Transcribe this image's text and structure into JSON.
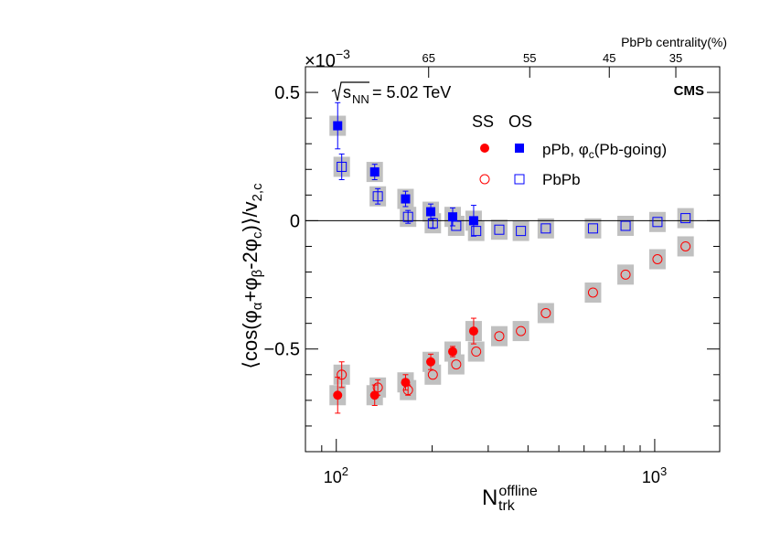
{
  "chart_data": {
    "type": "scatter",
    "title": "",
    "experiment_label": "CMS",
    "energy_label": {
      "sqrt": "s",
      "sub": "NN",
      "value": "= 5.02 TeV"
    },
    "exponent_label": {
      "base": "×10",
      "exp": "−3"
    },
    "ylabel": "⟨cos(φα+φβ−2φc)⟩/v2,c",
    "ylabel_parts": {
      "open": "⟨cos(φ",
      "a": "α",
      "plus": "+φ",
      "b": "β",
      "minus": "-2φ",
      "c": "c",
      "close": ")⟩/v",
      "v2c": "2,c"
    },
    "xlabel_parts": {
      "base": "N",
      "sup": "offline",
      "sub": "trk"
    },
    "xlabel": "N_trk^offline",
    "xscale": "log",
    "xlim": [
      80,
      1600
    ],
    "ylim": [
      -0.0009,
      0.0006
    ],
    "y_ticks": [
      0.0005,
      0,
      -0.0005
    ],
    "y_tick_labels": [
      "0.5",
      "0",
      "−0.5"
    ],
    "x_ticks": [
      100,
      1000
    ],
    "x_tick_labels": [
      {
        "base": "10",
        "exp": "2"
      },
      {
        "base": "10",
        "exp": "3"
      }
    ],
    "top_axis": {
      "label": "PbPb centrality(%)",
      "ticks": [
        {
          "label": "65",
          "at_ntrk": 195
        },
        {
          "label": "55",
          "at_ntrk": 405
        },
        {
          "label": "45",
          "at_ntrk": 720
        },
        {
          "label": "35",
          "at_ntrk": 1165
        }
      ]
    },
    "legend": {
      "position": "top-right",
      "header_ss": "SS",
      "header_os": "OS",
      "entries": [
        {
          "label_prefix": "pPb, ",
          "label_phi": "φ",
          "label_sub": "c",
          "label_suffix": "(Pb-going)",
          "style": "filled"
        },
        {
          "label_prefix": "PbPb",
          "label_phi": "",
          "label_sub": "",
          "label_suffix": "",
          "style": "open"
        }
      ]
    },
    "colors": {
      "ss": "#ff0000",
      "os": "#0000ff",
      "sys_box": "#c0c0c0",
      "axis": "#000000"
    },
    "series": [
      {
        "name": "pPb OS",
        "marker": "filled-square",
        "color": "#0000ff",
        "points": [
          {
            "x": 101,
            "y": 0.00037,
            "err": 9e-05
          },
          {
            "x": 132,
            "y": 0.00019,
            "err": 3e-05
          },
          {
            "x": 165,
            "y": 8.5e-05,
            "err": 3e-05
          },
          {
            "x": 198,
            "y": 3.5e-05,
            "err": 3e-05
          },
          {
            "x": 232,
            "y": 1.5e-05,
            "err": 3.5e-05
          },
          {
            "x": 270,
            "y": 0.0,
            "err": 6e-05
          }
        ]
      },
      {
        "name": "PbPb OS",
        "marker": "open-square",
        "color": "#0000ff",
        "points": [
          {
            "x": 104,
            "y": 0.00021,
            "err": 5e-05
          },
          {
            "x": 135,
            "y": 9.5e-05,
            "err": 3e-05
          },
          {
            "x": 168,
            "y": 1.5e-05,
            "err": 2.5e-05
          },
          {
            "x": 201,
            "y": -1e-05,
            "err": 2e-05
          },
          {
            "x": 238,
            "y": -2e-05,
            "err": 1e-05
          },
          {
            "x": 275,
            "y": -4e-05,
            "err": 1e-05
          },
          {
            "x": 325,
            "y": -3.5e-05,
            "err": 5e-06
          },
          {
            "x": 380,
            "y": -4e-05,
            "err": 5e-06
          },
          {
            "x": 455,
            "y": -3e-05,
            "err": 5e-06
          },
          {
            "x": 640,
            "y": -3e-05,
            "err": 5e-06
          },
          {
            "x": 810,
            "y": -2e-05,
            "err": 5e-06
          },
          {
            "x": 1020,
            "y": -5e-06,
            "err": 5e-06
          },
          {
            "x": 1250,
            "y": 1e-05,
            "err": 5e-06
          }
        ]
      },
      {
        "name": "pPb SS",
        "marker": "filled-circle",
        "color": "#ff0000",
        "points": [
          {
            "x": 101,
            "y": -0.00068,
            "err": 7e-05
          },
          {
            "x": 132,
            "y": -0.00068,
            "err": 4e-05
          },
          {
            "x": 165,
            "y": -0.00063,
            "err": 3e-05
          },
          {
            "x": 198,
            "y": -0.00055,
            "err": 3e-05
          },
          {
            "x": 232,
            "y": -0.00051,
            "err": 2e-05
          },
          {
            "x": 270,
            "y": -0.00043,
            "err": 5e-05
          }
        ]
      },
      {
        "name": "PbPb SS",
        "marker": "open-circle",
        "color": "#ff0000",
        "points": [
          {
            "x": 104,
            "y": -0.0006,
            "err": 5e-05
          },
          {
            "x": 135,
            "y": -0.00065,
            "err": 3e-05
          },
          {
            "x": 168,
            "y": -0.00066,
            "err": 2e-05
          },
          {
            "x": 201,
            "y": -0.0006,
            "err": 1e-05
          },
          {
            "x": 238,
            "y": -0.00056,
            "err": 1e-05
          },
          {
            "x": 275,
            "y": -0.00051,
            "err": 5e-06
          },
          {
            "x": 325,
            "y": -0.00045,
            "err": 5e-06
          },
          {
            "x": 380,
            "y": -0.00043,
            "err": 5e-06
          },
          {
            "x": 455,
            "y": -0.00036,
            "err": 5e-06
          },
          {
            "x": 640,
            "y": -0.00028,
            "err": 5e-06
          },
          {
            "x": 810,
            "y": -0.00021,
            "err": 5e-06
          },
          {
            "x": 1020,
            "y": -0.00015,
            "err": 5e-06
          },
          {
            "x": 1250,
            "y": -0.0001,
            "err": 5e-06
          }
        ]
      }
    ]
  }
}
